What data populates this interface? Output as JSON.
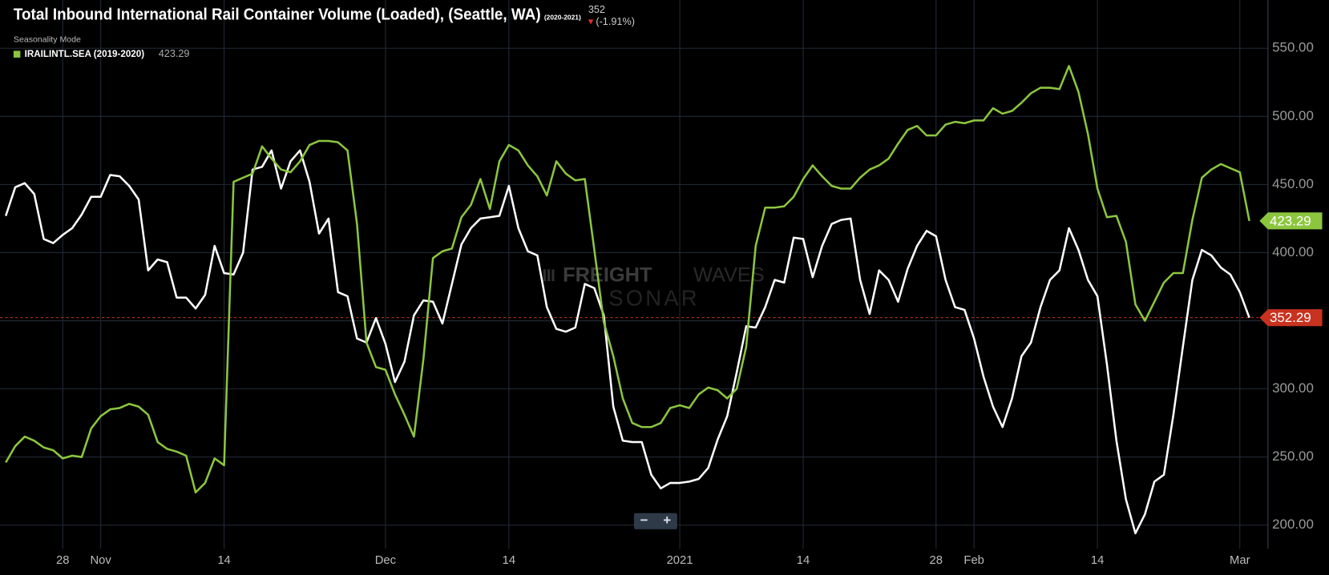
{
  "chart_data": {
    "type": "line",
    "title": "Total Inbound International Rail Container Volume (Loaded), (Seattle, WA)",
    "title_period": "(2020-2021)",
    "current_value": 352,
    "change": "(-1.91%)",
    "subtitle": "Seasonality Mode",
    "watermark": [
      "FREIGHT",
      "WAVES",
      "SONAR"
    ],
    "zoom_controls": [
      "−",
      "+"
    ],
    "categories": [
      null,
      null,
      null,
      null,
      null,
      null,
      "28",
      null,
      null,
      null,
      "Nov",
      null,
      null,
      null,
      null,
      null,
      null,
      null,
      null,
      null,
      null,
      null,
      null,
      "14",
      null,
      null,
      null,
      null,
      null,
      null,
      null,
      null,
      null,
      null,
      null,
      null,
      null,
      null,
      null,
      null,
      "Dec",
      null,
      null,
      null,
      null,
      null,
      null,
      null,
      null,
      null,
      null,
      null,
      null,
      "14",
      null,
      null,
      null,
      null,
      null,
      null,
      null,
      null,
      null,
      null,
      null,
      null,
      null,
      null,
      null,
      null,
      null,
      "2021",
      null,
      null,
      null,
      null,
      null,
      null,
      null,
      null,
      null,
      null,
      null,
      null,
      "14",
      null,
      null,
      null,
      null,
      null,
      null,
      null,
      null,
      null,
      null,
      null,
      null,
      null,
      "28",
      null,
      null,
      null,
      "Feb",
      null,
      null,
      null,
      null,
      null,
      null,
      null,
      null,
      null,
      null,
      null,
      null,
      "14",
      null,
      null,
      null,
      null,
      null,
      null,
      null,
      null,
      null,
      null,
      null,
      null,
      null,
      null,
      "Mar",
      null
    ],
    "series": [
      {
        "color": "#ffffff",
        "values": [
          427,
          448,
          451,
          443,
          410,
          407,
          413,
          418,
          428,
          441,
          441,
          457,
          456,
          449,
          439,
          387,
          395,
          393,
          367,
          367,
          359,
          369,
          405,
          385,
          384,
          400,
          461,
          463,
          475,
          447,
          467,
          475,
          452,
          414,
          425,
          371,
          368,
          337,
          334,
          352,
          333,
          305,
          320,
          354,
          365,
          364,
          348,
          377,
          406,
          418,
          425,
          426,
          427,
          449,
          418,
          401,
          398,
          360,
          344,
          342,
          345,
          377,
          374,
          354,
          287,
          262,
          261,
          261,
          237,
          227,
          231,
          231,
          232,
          234,
          242,
          263,
          280,
          312,
          346,
          345,
          360,
          380,
          378,
          411,
          410,
          382,
          405,
          421,
          424,
          425,
          380,
          355,
          387,
          380,
          364,
          388,
          405,
          416,
          412,
          380,
          360,
          358,
          337,
          309,
          287,
          272,
          293,
          324,
          334,
          360,
          380,
          387,
          418,
          402,
          380,
          368,
          318,
          262,
          219,
          194,
          208,
          232,
          237,
          281,
          331,
          380,
          402,
          398,
          389,
          384,
          371,
          352.29
        ]
      },
      {
        "name": "IRAILINTL.SEA (2019-2020)",
        "color": "#8cc63f",
        "values": [
          246,
          258,
          265,
          262,
          257,
          255,
          249,
          251,
          250,
          271,
          280,
          285,
          286,
          289,
          287,
          281,
          261,
          256,
          254,
          251,
          224,
          231,
          249,
          244,
          452,
          455,
          458,
          478,
          469,
          461,
          459,
          467,
          479,
          482,
          482,
          481,
          475,
          421,
          334,
          316,
          314,
          296,
          281,
          265,
          322,
          396,
          401,
          403,
          426,
          435,
          454,
          432,
          467,
          479,
          475,
          464,
          456,
          442,
          467,
          458,
          453,
          454,
          402,
          349,
          324,
          293,
          275,
          272,
          272,
          275,
          286,
          288,
          286,
          296,
          301,
          299,
          293,
          300,
          331,
          405,
          433,
          433,
          434,
          441,
          454,
          464,
          456,
          449,
          447,
          447,
          455,
          461,
          464,
          469,
          480,
          490,
          493,
          486,
          486,
          494,
          496,
          495,
          497,
          497,
          506,
          502,
          504,
          510,
          517,
          521,
          521,
          520,
          537,
          518,
          487,
          447,
          426,
          427,
          408,
          362,
          350,
          364,
          378,
          385,
          385,
          424,
          455,
          461,
          465,
          462,
          459,
          423.29
        ]
      }
    ],
    "ylim": [
      182.7,
      585.4
    ],
    "yticks": [
      {
        "value": 200,
        "label": "200.00"
      },
      {
        "value": 250,
        "label": "250.00"
      },
      {
        "value": 300,
        "label": "300.00"
      },
      {
        "value": 350,
        "label": "350.00"
      },
      {
        "value": 400,
        "label": "400.00"
      },
      {
        "value": 450,
        "label": "450.00"
      },
      {
        "value": 500,
        "label": "500.00"
      },
      {
        "value": 550,
        "label": "550.00"
      }
    ],
    "grid": true
  }
}
